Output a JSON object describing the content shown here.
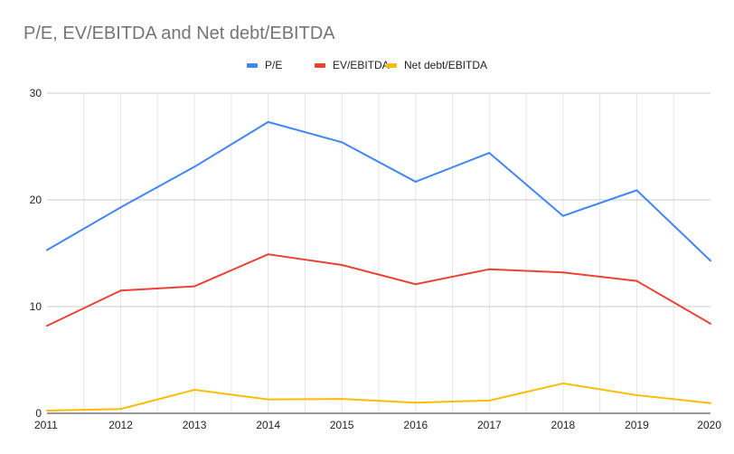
{
  "chart_data": {
    "type": "line",
    "title": "P/E, EV/EBITDA and Net debt/EBITDA",
    "xlabel": "",
    "ylabel": "",
    "x": [
      "2011",
      "2012",
      "2013",
      "2014",
      "2015",
      "2016",
      "2017",
      "2018",
      "2019",
      "2020"
    ],
    "ylim": [
      0,
      30
    ],
    "yticks": [
      "0",
      "10",
      "20",
      "30"
    ],
    "grid": true,
    "legend_position": "top",
    "series": [
      {
        "name": "P/E",
        "color": "#4285F4",
        "values": [
          15.3,
          19.3,
          23.1,
          27.3,
          25.4,
          21.7,
          24.4,
          18.5,
          20.9,
          14.3
        ]
      },
      {
        "name": "EV/EBITDA",
        "color": "#EA4335",
        "values": [
          8.2,
          11.5,
          11.9,
          14.9,
          13.9,
          12.1,
          13.5,
          13.2,
          12.4,
          8.4
        ]
      },
      {
        "name": "Net debt/EBITDA",
        "color": "#FBBC04",
        "values": [
          0.25,
          0.4,
          2.2,
          1.3,
          1.35,
          1.0,
          1.2,
          2.8,
          1.7,
          0.95
        ]
      }
    ]
  }
}
